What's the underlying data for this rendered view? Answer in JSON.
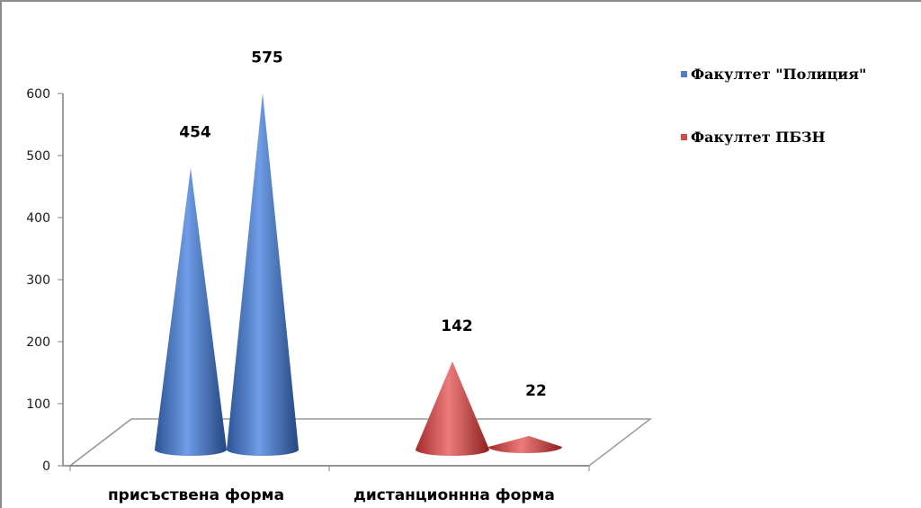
{
  "chart_data": {
    "type": "bar",
    "style": "3d-cone",
    "categories": [
      "присъствена форма",
      "дистанционнна форма"
    ],
    "series": [
      {
        "name": "Факултет \"Полиция\"",
        "values": [
          454,
          575
        ],
        "color": "#4a7cc9"
      },
      {
        "name": "Факултет ПБЗН",
        "values": [
          142,
          22
        ],
        "color": "#d04a4a"
      }
    ],
    "data_labels": [
      [
        "454",
        "575"
      ],
      [
        "142",
        "22"
      ]
    ],
    "yticks": [
      "0",
      "100",
      "200",
      "300",
      "400",
      "500",
      "600"
    ],
    "ylim": [
      0,
      600
    ],
    "grid": false,
    "legend_position": "top-right"
  }
}
